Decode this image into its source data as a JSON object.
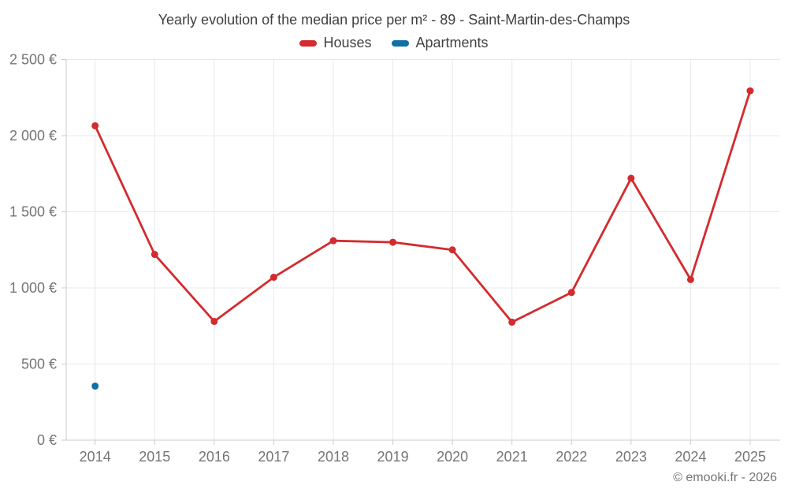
{
  "title": "Yearly evolution of the median price per m² - 89 - Saint-Martin-des-Champs",
  "footer": "© emooki.fr - 2026",
  "colors": {
    "houses": "#d32b2e",
    "apartments": "#1270a4",
    "grid": "#e8e8e8",
    "axis": "#cccccc",
    "axis_text": "#757575",
    "title_text": "#3f3f3f"
  },
  "chart_data": {
    "type": "line",
    "categories": [
      "2014",
      "2015",
      "2016",
      "2017",
      "2018",
      "2019",
      "2020",
      "2021",
      "2022",
      "2023",
      "2024",
      "2025"
    ],
    "series": [
      {
        "name": "Houses",
        "color": "#d32b2e",
        "values": [
          2065,
          1220,
          780,
          1070,
          1310,
          1300,
          1250,
          775,
          970,
          1720,
          1055,
          2295
        ]
      },
      {
        "name": "Apartments",
        "color": "#1270a4",
        "values": [
          355,
          null,
          null,
          null,
          null,
          null,
          null,
          null,
          null,
          null,
          null,
          null
        ]
      }
    ],
    "title": "Yearly evolution of the median price per m² - 89 - Saint-Martin-des-Champs",
    "xlabel": "",
    "ylabel": "",
    "ylim": [
      0,
      2500
    ],
    "ytick_step": 500,
    "ytick_labels": [
      "0 €",
      "500 €",
      "1 000 €",
      "1 500 €",
      "2 000 €",
      "2 500 €"
    ],
    "grid": true,
    "legend_position": "top"
  }
}
